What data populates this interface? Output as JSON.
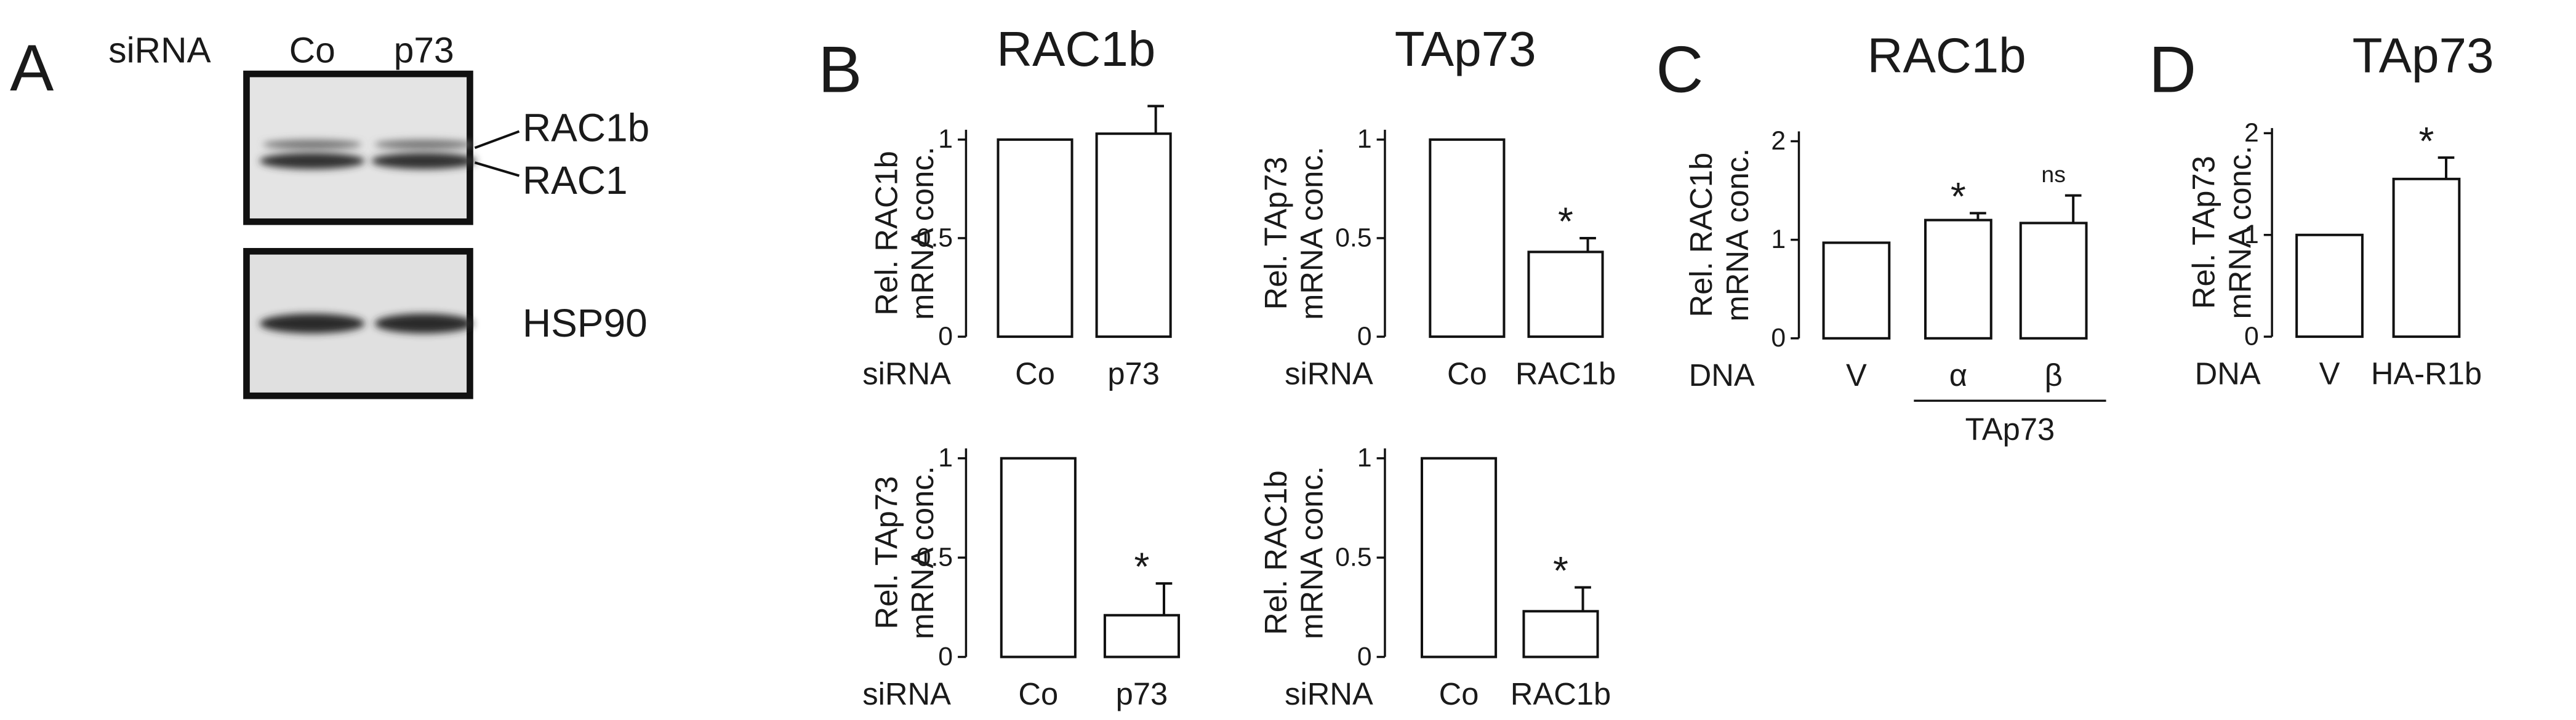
{
  "panel_labels": [
    "A",
    "B",
    "C",
    "D"
  ],
  "blot": {
    "row_label": "siRNA",
    "lanes": [
      "Co",
      "p73"
    ],
    "bands": [
      "RAC1b",
      "RAC1",
      "HSP90"
    ]
  },
  "chart_data": [
    {
      "type": "bar",
      "title": "RAC1b",
      "y_label": [
        "Rel. RAC1b",
        "mRNA conc."
      ],
      "x_label": "siRNA",
      "categories": [
        "Co",
        "p73"
      ],
      "values": [
        1,
        1.03
      ],
      "errors": [
        null,
        0.14
      ],
      "annotations": [
        null,
        null
      ],
      "color": "#ffffff",
      "ylim": [
        0,
        1.05
      ],
      "yticks": [
        0,
        0.5,
        1
      ]
    },
    {
      "type": "bar",
      "title": "TAp73",
      "y_label": [
        "Rel. TAp73",
        "mRNA conc."
      ],
      "x_label": "siRNA",
      "categories": [
        "Co",
        "RAC1b"
      ],
      "values": [
        1,
        0.43
      ],
      "errors": [
        null,
        0.07
      ],
      "annotations": [
        null,
        "*"
      ],
      "color": "#ffffff",
      "ylim": [
        0,
        1.05
      ],
      "yticks": [
        0,
        0.5,
        1
      ]
    },
    {
      "type": "bar",
      "y_label": [
        "Rel. TAp73",
        "mRNA conc."
      ],
      "x_label": "siRNA",
      "categories": [
        "Co",
        "p73"
      ],
      "values": [
        1,
        0.21
      ],
      "errors": [
        null,
        0.16
      ],
      "annotations": [
        null,
        "*"
      ],
      "color": "#ffffff",
      "ylim": [
        0,
        1.05
      ],
      "yticks": [
        0,
        0.5,
        1
      ]
    },
    {
      "type": "bar",
      "y_label": [
        "Rel. RAC1b",
        "mRNA conc."
      ],
      "x_label": "siRNA",
      "categories": [
        "Co",
        "RAC1b"
      ],
      "values": [
        1,
        0.23
      ],
      "errors": [
        null,
        0.12
      ],
      "annotations": [
        null,
        "*"
      ],
      "color": "#ffffff",
      "ylim": [
        0,
        1.05
      ],
      "yticks": [
        0,
        0.5,
        1
      ]
    },
    {
      "type": "bar",
      "title": "RAC1b",
      "y_label": [
        "Rel. RAC1b",
        "mRNA conc."
      ],
      "x_label": "DNA",
      "categories": [
        "V",
        "α",
        "β"
      ],
      "values": [
        0.97,
        1.2,
        1.17
      ],
      "errors": [
        null,
        0.07,
        0.28
      ],
      "annotations": [
        null,
        "*",
        "ns"
      ],
      "group_label": "TAp73",
      "color": "#ffffff",
      "ylim": [
        0,
        2.1
      ],
      "yticks": [
        0,
        1,
        2
      ]
    },
    {
      "type": "bar",
      "title": "TAp73",
      "y_label": [
        "Rel. TAp73",
        "mRNA conc."
      ],
      "x_label": "DNA",
      "categories": [
        "V",
        "HA-R1b"
      ],
      "values": [
        1,
        1.55
      ],
      "errors": [
        null,
        0.21
      ],
      "annotations": [
        null,
        "*"
      ],
      "color": "#ffffff",
      "ylim": [
        0,
        2.05
      ],
      "yticks": [
        0,
        1,
        2
      ]
    }
  ]
}
